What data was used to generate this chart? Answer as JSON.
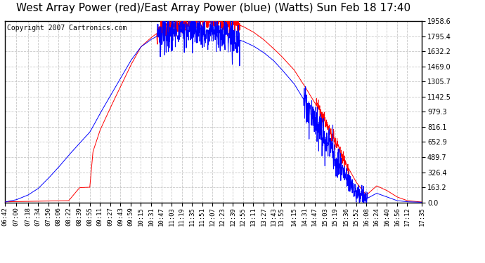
{
  "title": "West Array Power (red)/East Array Power (blue) (Watts) Sun Feb 18 17:40",
  "copyright": "Copyright 2007 Cartronics.com",
  "ylabel_right_values": [
    0.0,
    163.2,
    326.4,
    489.7,
    652.9,
    816.1,
    979.3,
    1142.5,
    1305.7,
    1469.0,
    1632.2,
    1795.4,
    1958.6
  ],
  "ymax": 1958.6,
  "ymin": 0.0,
  "background_color": "#ffffff",
  "plot_bg_color": "#ffffff",
  "grid_color": "#c8c8c8",
  "grid_style": "--",
  "red_color": "#ff0000",
  "blue_color": "#0000ff",
  "title_fontsize": 11,
  "copyright_fontsize": 7,
  "tick_fontsize": 6.5,
  "x_tick_labels": [
    "06:42",
    "07:00",
    "07:18",
    "07:34",
    "07:50",
    "08:06",
    "08:22",
    "08:39",
    "08:55",
    "09:11",
    "09:27",
    "09:43",
    "09:59",
    "10:15",
    "10:31",
    "10:47",
    "11:03",
    "11:19",
    "11:35",
    "11:51",
    "12:07",
    "12:23",
    "12:39",
    "12:55",
    "13:11",
    "13:27",
    "13:43",
    "13:55",
    "14:15",
    "14:31",
    "14:47",
    "15:03",
    "15:19",
    "15:36",
    "15:52",
    "16:08",
    "16:24",
    "16:40",
    "16:56",
    "17:12",
    "17:35"
  ]
}
